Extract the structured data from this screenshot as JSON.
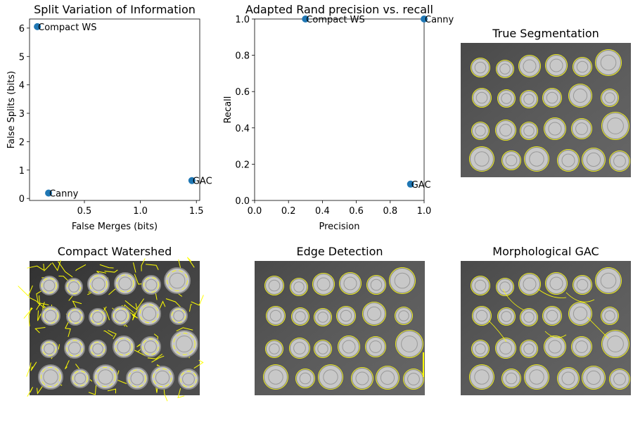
{
  "chart_data": [
    {
      "type": "scatter",
      "title": "Split Variation of Information",
      "xlabel": "False Merges (bits)",
      "ylabel": "False Splits (bits)",
      "xlim": [
        0.01,
        1.53
      ],
      "ylim": [
        -0.07,
        6.32
      ],
      "xticks": [
        0.5,
        1.0,
        1.5
      ],
      "xtick_labels": [
        "0.5",
        "1.0",
        "1.5"
      ],
      "yticks": [
        0,
        1,
        2,
        3,
        4,
        5,
        6
      ],
      "ytick_labels": [
        "0",
        "1",
        "2",
        "3",
        "4",
        "5",
        "6"
      ],
      "grid": false,
      "color": "#1f77b4",
      "points": [
        {
          "label": "Compact WS",
          "x": 0.08,
          "y": 6.05
        },
        {
          "label": "Canny",
          "x": 0.18,
          "y": 0.19
        },
        {
          "label": "GAC",
          "x": 1.46,
          "y": 0.63
        }
      ]
    },
    {
      "type": "scatter",
      "title": "Adapted Rand precision vs. recall",
      "xlabel": "Precision",
      "ylabel": "Recall",
      "xlim": [
        0,
        1
      ],
      "ylim": [
        0,
        1
      ],
      "xticks": [
        0,
        0.2,
        0.4,
        0.6,
        0.8,
        1.0
      ],
      "xtick_labels": [
        "0.0",
        "0.2",
        "0.4",
        "0.6",
        "0.8",
        "1.0"
      ],
      "yticks": [
        0,
        0.2,
        0.4,
        0.6,
        0.8,
        1.0
      ],
      "ytick_labels": [
        "0.0",
        "0.2",
        "0.4",
        "0.6",
        "0.8",
        "1.0"
      ],
      "grid": false,
      "color": "#1f77b4",
      "points": [
        {
          "label": "Compact WS",
          "x": 0.3,
          "y": 1.0
        },
        {
          "label": "Canny",
          "x": 1.0,
          "y": 1.0
        },
        {
          "label": "GAC",
          "x": 0.92,
          "y": 0.09
        }
      ]
    }
  ],
  "images": [
    {
      "title": "True Segmentation",
      "style": "truth"
    },
    {
      "title": "Compact Watershed",
      "style": "watershed"
    },
    {
      "title": "Edge Detection",
      "style": "edges"
    },
    {
      "title": "Morphological GAC",
      "style": "gac"
    }
  ],
  "contour_color": "#ffff00"
}
